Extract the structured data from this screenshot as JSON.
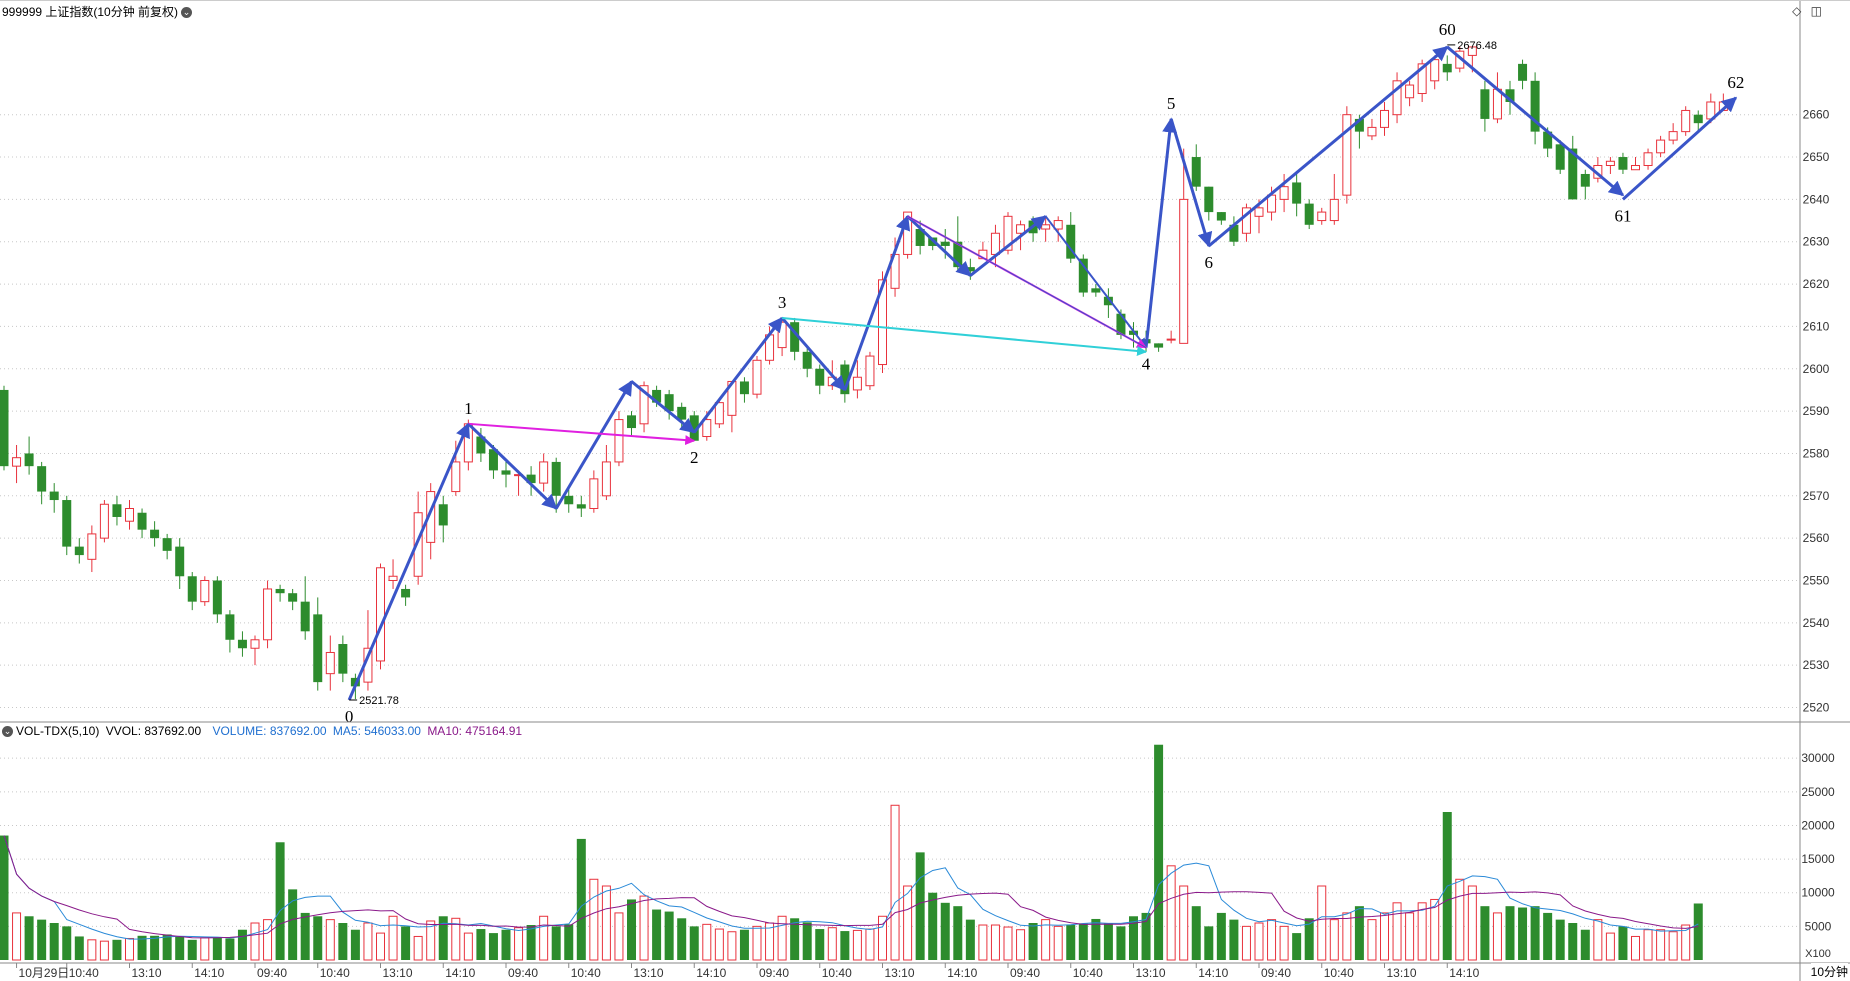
{
  "header": {
    "title": "999999 上证指数(10分钟 前复权)",
    "dropdown_icon": "chevron-down-icon"
  },
  "toolbar_icons": [
    "diamond-icon",
    "window-toggle-icon"
  ],
  "volume_header": {
    "indicator": "VOL-TDX(5,10)",
    "vvol": "VVOL: 837692.00",
    "volume": "VOLUME: 837692.00",
    "ma5": "MA5: 546033.00",
    "ma10": "MA10: 475164.91"
  },
  "timeframe": "10分钟",
  "colors": {
    "up": "#e8323c",
    "down": "#2d8c2d",
    "wave": "#3a55c8",
    "magenta": "#e020e0",
    "cyan": "#30d0d8",
    "ma5": "#2a8ad8",
    "ma10": "#8a1a8a",
    "grid": "#c8c8c8"
  },
  "chart_data": {
    "type": "candlestick",
    "y_axis": {
      "ticks": [
        2520,
        2530,
        2540,
        2550,
        2560,
        2570,
        2580,
        2590,
        2600,
        2610,
        2620,
        2630,
        2640,
        2650,
        2660
      ],
      "min": 2518,
      "max": 2680
    },
    "x_axis_labels": [
      {
        "i": 1,
        "label": "10月29日"
      },
      {
        "i": 5,
        "label": "10:40"
      },
      {
        "i": 10,
        "label": "13:10"
      },
      {
        "i": 15,
        "label": "14:10"
      },
      {
        "i": 20,
        "label": "09:40"
      },
      {
        "i": 25,
        "label": "10:40"
      },
      {
        "i": 30,
        "label": "13:10"
      },
      {
        "i": 35,
        "label": "14:10"
      },
      {
        "i": 40,
        "label": "09:40"
      },
      {
        "i": 45,
        "label": "10:40"
      },
      {
        "i": 50,
        "label": "13:10"
      },
      {
        "i": 55,
        "label": "14:10"
      },
      {
        "i": 60,
        "label": "09:40"
      },
      {
        "i": 65,
        "label": "10:40"
      },
      {
        "i": 70,
        "label": "13:10"
      },
      {
        "i": 75,
        "label": "14:10"
      },
      {
        "i": 80,
        "label": "09:40"
      },
      {
        "i": 85,
        "label": "10:40"
      },
      {
        "i": 90,
        "label": "13:10"
      },
      {
        "i": 95,
        "label": "14:10"
      },
      {
        "i": 100,
        "label": "09:40"
      },
      {
        "i": 105,
        "label": "10:40"
      },
      {
        "i": 110,
        "label": "13:10"
      },
      {
        "i": 115,
        "label": "14:10"
      }
    ],
    "candles": [
      [
        2595,
        2577,
        2596,
        2576
      ],
      [
        2577,
        2579,
        2582,
        2573
      ],
      [
        2580,
        2577,
        2584,
        2575
      ],
      [
        2577,
        2571,
        2578,
        2568
      ],
      [
        2571,
        2569,
        2573,
        2566
      ],
      [
        2569,
        2558,
        2570,
        2556
      ],
      [
        2558,
        2556,
        2560,
        2554
      ],
      [
        2555,
        2561,
        2563,
        2552
      ],
      [
        2560,
        2568,
        2569,
        2559
      ],
      [
        2568,
        2565,
        2570,
        2563
      ],
      [
        2564,
        2567,
        2569,
        2562
      ],
      [
        2566,
        2562,
        2567,
        2560
      ],
      [
        2562,
        2560,
        2564,
        2558
      ],
      [
        2560,
        2557,
        2561,
        2555
      ],
      [
        2558,
        2551,
        2560,
        2548
      ],
      [
        2551,
        2545,
        2552,
        2543
      ],
      [
        2545,
        2550,
        2551,
        2544
      ],
      [
        2550,
        2542,
        2551,
        2540
      ],
      [
        2542,
        2536,
        2543,
        2533
      ],
      [
        2536,
        2534,
        2538,
        2532
      ],
      [
        2534,
        2536,
        2537,
        2530
      ],
      [
        2536,
        2548,
        2550,
        2534
      ],
      [
        2548,
        2547,
        2549,
        2545
      ],
      [
        2547,
        2545,
        2548,
        2543
      ],
      [
        2545,
        2538,
        2551,
        2536
      ],
      [
        2542,
        2526,
        2546,
        2524
      ],
      [
        2528,
        2533,
        2537,
        2524
      ],
      [
        2535,
        2528,
        2537,
        2526
      ],
      [
        2527,
        2525,
        2528,
        2522
      ],
      [
        2526,
        2534,
        2543,
        2524
      ],
      [
        2531,
        2553,
        2554,
        2529
      ],
      [
        2550,
        2551,
        2555,
        2548
      ],
      [
        2548,
        2546,
        2549,
        2544
      ],
      [
        2551,
        2566,
        2571,
        2549
      ],
      [
        2559,
        2571,
        2573,
        2555
      ],
      [
        2568,
        2563,
        2570,
        2559
      ],
      [
        2571,
        2578,
        2583,
        2570
      ],
      [
        2578,
        2587,
        2588,
        2576
      ],
      [
        2584,
        2580,
        2586,
        2578
      ],
      [
        2581,
        2576,
        2582,
        2574
      ],
      [
        2576,
        2575,
        2578,
        2572
      ],
      [
        2575,
        2575,
        2576,
        2570
      ],
      [
        2575,
        2573,
        2577,
        2570
      ],
      [
        2573,
        2578,
        2580,
        2571
      ],
      [
        2578,
        2570,
        2579,
        2566
      ],
      [
        2570,
        2568,
        2572,
        2566
      ],
      [
        2568,
        2567,
        2570,
        2565
      ],
      [
        2567,
        2574,
        2576,
        2566
      ],
      [
        2570,
        2578,
        2582,
        2569
      ],
      [
        2578,
        2588,
        2590,
        2577
      ],
      [
        2589,
        2586,
        2590,
        2584
      ],
      [
        2587,
        2596,
        2597,
        2585
      ],
      [
        2595,
        2592,
        2596,
        2591
      ],
      [
        2594,
        2590,
        2595,
        2588
      ],
      [
        2591,
        2588,
        2592,
        2586
      ],
      [
        2589,
        2583,
        2590,
        2583
      ],
      [
        2584,
        2588,
        2590,
        2583
      ],
      [
        2587,
        2592,
        2593,
        2586
      ],
      [
        2589,
        2597,
        2597,
        2585
      ],
      [
        2597,
        2594,
        2598,
        2592
      ],
      [
        2594,
        2602,
        2603,
        2593
      ],
      [
        2602,
        2608,
        2610,
        2601
      ],
      [
        2605,
        2611,
        2612,
        2603
      ],
      [
        2611,
        2604,
        2612,
        2602
      ],
      [
        2604,
        2600,
        2605,
        2598
      ],
      [
        2600,
        2596,
        2601,
        2594
      ],
      [
        2596,
        2598,
        2602,
        2595
      ],
      [
        2601,
        2594,
        2602,
        2592
      ],
      [
        2595,
        2598,
        2602,
        2593
      ],
      [
        2596,
        2603,
        2604,
        2595
      ],
      [
        2601,
        2621,
        2623,
        2599
      ],
      [
        2619,
        2627,
        2631,
        2617
      ],
      [
        2627,
        2637,
        2637,
        2626
      ],
      [
        2633,
        2629,
        2635,
        2627
      ],
      [
        2631,
        2629,
        2631,
        2628
      ],
      [
        2630,
        2629,
        2633,
        2626
      ],
      [
        2630,
        2624,
        2636,
        2623
      ],
      [
        2624,
        2623,
        2626,
        2621
      ],
      [
        2626,
        2628,
        2630,
        2626
      ],
      [
        2627,
        2632,
        2634,
        2624
      ],
      [
        2628,
        2636,
        2637,
        2627
      ],
      [
        2632,
        2634,
        2635,
        2628
      ],
      [
        2635,
        2632,
        2636,
        2630
      ],
      [
        2633,
        2634,
        2636,
        2630
      ],
      [
        2633,
        2635,
        2636,
        2630
      ],
      [
        2634,
        2626,
        2637,
        2625
      ],
      [
        2626,
        2618,
        2627,
        2617
      ],
      [
        2619,
        2618,
        2620,
        2617
      ],
      [
        2617,
        2615,
        2619,
        2612
      ],
      [
        2613,
        2608,
        2614,
        2607
      ],
      [
        2609,
        2608,
        2611,
        2605
      ],
      [
        2607,
        2606,
        2609,
        2604
      ],
      [
        2606,
        2605,
        2606,
        2604
      ],
      [
        2607,
        2607,
        2609,
        2606
      ],
      [
        2606,
        2640,
        2652,
        2606
      ],
      [
        2650,
        2643,
        2653,
        2642
      ],
      [
        2643,
        2637,
        2643,
        2635
      ],
      [
        2637,
        2635,
        2637,
        2634
      ],
      [
        2634,
        2630,
        2636,
        2629
      ],
      [
        2632,
        2638,
        2639,
        2630
      ],
      [
        2636,
        2638,
        2640,
        2632
      ],
      [
        2637,
        2641,
        2643,
        2635
      ],
      [
        2640,
        2643,
        2646,
        2637
      ],
      [
        2644,
        2639,
        2646,
        2636
      ],
      [
        2639,
        2634,
        2640,
        2633
      ],
      [
        2635,
        2637,
        2638,
        2634
      ],
      [
        2635,
        2640,
        2646,
        2634
      ],
      [
        2641,
        2660,
        2662,
        2639
      ],
      [
        2659,
        2656,
        2660,
        2652
      ],
      [
        2655,
        2657,
        2659,
        2654
      ],
      [
        2657,
        2661,
        2663,
        2655
      ],
      [
        2660,
        2668,
        2670,
        2658
      ],
      [
        2664,
        2667,
        2668,
        2662
      ],
      [
        2665,
        2672,
        2673,
        2663
      ],
      [
        2668,
        2673,
        2674,
        2666
      ],
      [
        2672,
        2670,
        2674,
        2668
      ],
      [
        2671,
        2675,
        2676,
        2670
      ],
      [
        2674,
        2676,
        2676,
        2670
      ],
      [
        2666,
        2659,
        2668,
        2656
      ],
      [
        2659,
        2666,
        2670,
        2658
      ],
      [
        2666,
        2663,
        2668,
        2660
      ],
      [
        2672,
        2668,
        2673,
        2666
      ],
      [
        2668,
        2656,
        2670,
        2653
      ],
      [
        2656,
        2652,
        2657,
        2650
      ],
      [
        2653,
        2647,
        2654,
        2646
      ],
      [
        2652,
        2640,
        2655,
        2640
      ],
      [
        2646,
        2643,
        2647,
        2640
      ],
      [
        2645,
        2648,
        2650,
        2644
      ],
      [
        2648,
        2649,
        2650,
        2646
      ],
      [
        2650,
        2647,
        2651,
        2646
      ],
      [
        2647,
        2648,
        2650,
        2647
      ],
      [
        2648,
        2651,
        2652,
        2647
      ],
      [
        2651,
        2654,
        2655,
        2650
      ],
      [
        2654,
        2656,
        2658,
        2653
      ],
      [
        2656,
        2661,
        2662,
        2655
      ],
      [
        2660,
        2658,
        2661,
        2656
      ],
      [
        2659,
        2663,
        2665,
        2658
      ],
      [
        2661,
        2663,
        2665,
        2661
      ]
    ],
    "volume_ticks": [
      5000,
      10000,
      15000,
      20000,
      25000,
      30000
    ],
    "volume_max": 33000,
    "volume_unit": "X100",
    "volumes": [
      18500,
      7000,
      6500,
      6000,
      5500,
      5000,
      3500,
      3000,
      2800,
      3000,
      3200,
      3600,
      3600,
      3800,
      3500,
      3000,
      3300,
      3400,
      3200,
      4500,
      5500,
      6000,
      17500,
      10500,
      7000,
      6500,
      6000,
      5500,
      4500,
      5500,
      4000,
      6500,
      5000,
      3500,
      5800,
      6500,
      6200,
      4000,
      4600,
      4000,
      4500,
      4800,
      5200,
      6500,
      5000,
      5300,
      18000,
      12000,
      11000,
      7000,
      9000,
      9500,
      7500,
      7200,
      6200,
      5000,
      5300,
      4600,
      4200,
      4500,
      5000,
      5500,
      6500,
      6200,
      5600,
      4600,
      4800,
      4300,
      4400,
      4600,
      6500,
      23000,
      11000,
      16000,
      10000,
      8500,
      8000,
      6000,
      5200,
      5200,
      4900,
      4500,
      5500,
      6000,
      5000,
      5200,
      5400,
      6100,
      5500,
      5000,
      6500,
      7000,
      32000,
      14000,
      11000,
      8000,
      5000,
      7000,
      6000,
      5000,
      5500,
      6000,
      5000,
      4000,
      6200,
      11000,
      6000,
      7000,
      8000,
      6000,
      7000,
      8500,
      7000,
      8500,
      9000,
      22000,
      12000,
      11000,
      8000,
      7000,
      8000,
      7800,
      8000,
      7000,
      6000,
      5500,
      4500,
      6000,
      4000,
      5000,
      3500,
      4500,
      4500,
      4200,
      5200,
      8400
    ],
    "wave_labels": [
      {
        "label": "0",
        "i": 27.5,
        "price": 2521.78,
        "price_label": "2521.78",
        "pos": "below"
      },
      {
        "label": "1",
        "i": 37,
        "price": 2587,
        "pos": "above"
      },
      {
        "label": "2",
        "i": 55,
        "price": 2583,
        "pos": "below"
      },
      {
        "label": "3",
        "i": 62,
        "price": 2612,
        "pos": "above"
      },
      {
        "label": "4",
        "i": 91,
        "price": 2605,
        "pos": "below"
      },
      {
        "label": "5",
        "i": 93,
        "price": 2659,
        "pos": "above"
      },
      {
        "label": "6",
        "i": 96,
        "price": 2629,
        "pos": "below"
      },
      {
        "label": "60",
        "i": 115,
        "price": 2676.48,
        "price_label": "2676.48",
        "pos": "above"
      },
      {
        "label": "61",
        "i": 129,
        "price": 2640,
        "pos": "below"
      },
      {
        "label": "62",
        "i": 138,
        "price": 2664,
        "pos": "above"
      }
    ],
    "wave_lines": [
      {
        "from": [
          27.5,
          2521.78
        ],
        "to": [
          37,
          2587
        ],
        "color": "wave",
        "w": 3,
        "arrow": true
      },
      {
        "from": [
          37,
          2587
        ],
        "to": [
          44,
          2567
        ],
        "color": "wave",
        "w": 3,
        "arrow": true
      },
      {
        "from": [
          44,
          2567
        ],
        "to": [
          50,
          2597
        ],
        "color": "wave",
        "w": 3,
        "arrow": true
      },
      {
        "from": [
          50,
          2597
        ],
        "to": [
          55,
          2585
        ],
        "color": "wave",
        "w": 3,
        "arrow": true
      },
      {
        "from": [
          55,
          2585
        ],
        "to": [
          62,
          2612
        ],
        "color": "wave",
        "w": 3,
        "arrow": true
      },
      {
        "from": [
          62,
          2612
        ],
        "to": [
          67,
          2595
        ],
        "color": "wave",
        "w": 3,
        "arrow": true
      },
      {
        "from": [
          67,
          2595
        ],
        "to": [
          72,
          2636
        ],
        "color": "wave",
        "w": 3,
        "arrow": true
      },
      {
        "from": [
          72,
          2636
        ],
        "to": [
          77,
          2622
        ],
        "color": "wave",
        "w": 3,
        "arrow": true
      },
      {
        "from": [
          77,
          2622
        ],
        "to": [
          83,
          2636
        ],
        "color": "wave",
        "w": 3,
        "arrow": true
      },
      {
        "from": [
          83,
          2636
        ],
        "to": [
          91,
          2605
        ],
        "color": "wave",
        "w": 2,
        "arrow": true
      },
      {
        "from": [
          91,
          2605
        ],
        "to": [
          93,
          2659
        ],
        "color": "wave",
        "w": 3,
        "arrow": true
      },
      {
        "from": [
          93,
          2659
        ],
        "to": [
          96,
          2629
        ],
        "color": "wave",
        "w": 3,
        "arrow": true
      },
      {
        "from": [
          96,
          2629
        ],
        "to": [
          115,
          2676
        ],
        "color": "wave",
        "w": 3,
        "arrow": true
      },
      {
        "from": [
          115,
          2676
        ],
        "to": [
          129,
          2641
        ],
        "color": "wave",
        "w": 3,
        "arrow": true
      },
      {
        "from": [
          129,
          2640
        ],
        "to": [
          138,
          2664
        ],
        "color": "wave",
        "w": 3,
        "arrow": true
      },
      {
        "from": [
          37,
          2587
        ],
        "to": [
          55,
          2583
        ],
        "color": "magenta",
        "w": 2,
        "arrow": true
      },
      {
        "from": [
          72,
          2636
        ],
        "to": [
          91,
          2605
        ],
        "color": "magenta",
        "w": 2,
        "arrow": true
      },
      {
        "from": [
          62,
          2612
        ],
        "to": [
          91,
          2604
        ],
        "color": "cyan",
        "w": 2,
        "arrow": true
      },
      {
        "from": [
          27.5,
          2521.78
        ],
        "to": [
          37,
          2587
        ],
        "color": "wave",
        "w": 1,
        "arrow": false
      },
      {
        "from": [
          37,
          2587
        ],
        "to": [
          44,
          2567
        ],
        "color": "wave",
        "w": 1,
        "arrow": false
      },
      {
        "from": [
          72,
          2636
        ],
        "to": [
          91,
          2605
        ],
        "color": "wave",
        "w": 1,
        "arrow": false
      },
      {
        "from": [
          96,
          2629
        ],
        "to": [
          115,
          2676
        ],
        "color": "wave",
        "w": 1,
        "arrow": false
      },
      {
        "from": [
          115,
          2676
        ],
        "to": [
          129,
          2641
        ],
        "color": "wave",
        "w": 1,
        "arrow": false
      }
    ]
  }
}
